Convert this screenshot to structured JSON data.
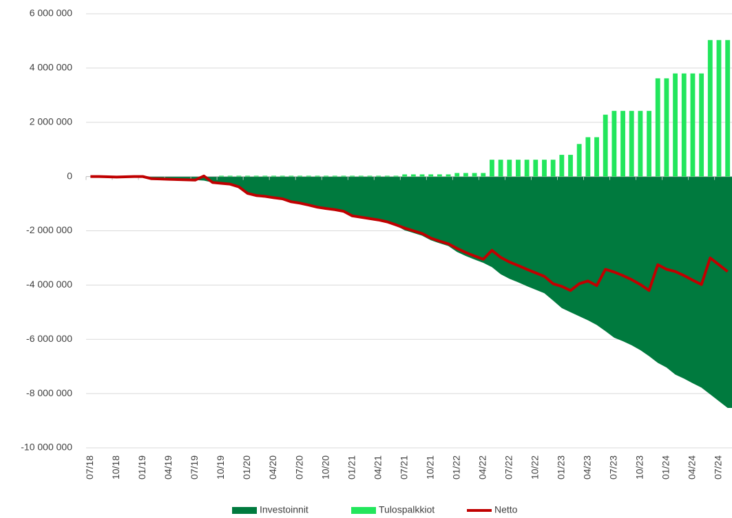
{
  "chart_data": {
    "type": "combo",
    "categories": [
      "07/18",
      null,
      null,
      "10/18",
      null,
      null,
      "01/19",
      null,
      null,
      "04/19",
      null,
      null,
      "07/19",
      null,
      null,
      "10/19",
      null,
      null,
      "01/20",
      null,
      null,
      "04/20",
      null,
      null,
      "07/20",
      null,
      null,
      "10/20",
      null,
      null,
      "01/21",
      null,
      null,
      "04/21",
      null,
      null,
      "07/21",
      null,
      null,
      "10/21",
      null,
      null,
      "01/22",
      null,
      null,
      "04/22",
      null,
      null,
      "07/22",
      null,
      null,
      "10/22",
      null,
      null,
      "01/23",
      null,
      null,
      "04/23",
      null,
      null,
      "07/23",
      null,
      null,
      "10/23",
      null,
      null,
      "01/24",
      null,
      null,
      "04/24",
      null,
      null,
      "07/24",
      null
    ],
    "series": [
      {
        "name": "Investoinnit",
        "kind": "area",
        "color": "#007a3e",
        "values": [
          0,
          0,
          -10000,
          -20000,
          -10000,
          0,
          0,
          -80000,
          -90000,
          -100000,
          -110000,
          -120000,
          -130000,
          -150000,
          -220000,
          -280000,
          -310000,
          -410000,
          -650000,
          -730000,
          -760000,
          -810000,
          -850000,
          -960000,
          -1010000,
          -1080000,
          -1160000,
          -1210000,
          -1250000,
          -1310000,
          -1480000,
          -1530000,
          -1580000,
          -1630000,
          -1700000,
          -1810000,
          -1980000,
          -2080000,
          -2180000,
          -2350000,
          -2460000,
          -2560000,
          -2780000,
          -2930000,
          -3060000,
          -3180000,
          -3340000,
          -3600000,
          -3770000,
          -3900000,
          -4040000,
          -4170000,
          -4300000,
          -4570000,
          -4850000,
          -5000000,
          -5150000,
          -5300000,
          -5470000,
          -5700000,
          -5940000,
          -6070000,
          -6220000,
          -6400000,
          -6620000,
          -6870000,
          -7040000,
          -7300000,
          -7450000,
          -7620000,
          -7780000,
          -8030000,
          -8280000,
          -8530000
        ]
      },
      {
        "name": "Tulospalkkiot",
        "kind": "bar",
        "color": "#22e65c",
        "values": [
          0,
          0,
          0,
          0,
          0,
          0,
          0,
          0,
          0,
          0,
          0,
          0,
          0,
          0,
          0,
          30000,
          30000,
          30000,
          30000,
          30000,
          30000,
          30000,
          30000,
          30000,
          30000,
          30000,
          30000,
          30000,
          30000,
          30000,
          30000,
          30000,
          30000,
          30000,
          30000,
          30000,
          80000,
          80000,
          80000,
          80000,
          80000,
          80000,
          130000,
          130000,
          130000,
          130000,
          620000,
          620000,
          620000,
          620000,
          620000,
          620000,
          620000,
          620000,
          800000,
          800000,
          1200000,
          1450000,
          1450000,
          2280000,
          2420000,
          2420000,
          2420000,
          2420000,
          2420000,
          3620000,
          3620000,
          3800000,
          3800000,
          3800000,
          3800000,
          5030000,
          5030000,
          5030000
        ]
      },
      {
        "name": "Netto",
        "kind": "line",
        "color": "#c00000",
        "values": [
          0,
          0,
          -10000,
          -20000,
          -10000,
          0,
          0,
          -80000,
          -90000,
          -100000,
          -110000,
          -120000,
          -130000,
          20000,
          -220000,
          -250000,
          -280000,
          -380000,
          -620000,
          -700000,
          -730000,
          -780000,
          -820000,
          -930000,
          -980000,
          -1050000,
          -1130000,
          -1180000,
          -1220000,
          -1280000,
          -1450000,
          -1500000,
          -1550000,
          -1600000,
          -1670000,
          -1780000,
          -1900000,
          -2000000,
          -2100000,
          -2270000,
          -2380000,
          -2480000,
          -2650000,
          -2800000,
          -2930000,
          -3050000,
          -2720000,
          -2980000,
          -3150000,
          -3280000,
          -3420000,
          -3550000,
          -3680000,
          -3950000,
          -4050000,
          -4200000,
          -3950000,
          -3850000,
          -4020000,
          -3420000,
          -3520000,
          -3650000,
          -3800000,
          -3980000,
          -4200000,
          -3250000,
          -3420000,
          -3500000,
          -3650000,
          -3820000,
          -3980000,
          -3000000,
          -3250000,
          -3500000
        ]
      }
    ],
    "ylim": [
      -10000000,
      6000000
    ],
    "yticks": [
      {
        "value": -10000000,
        "label": "-10 000 000"
      },
      {
        "value": -8000000,
        "label": "-8 000 000"
      },
      {
        "value": -6000000,
        "label": "-6 000 000"
      },
      {
        "value": -4000000,
        "label": "-4 000 000"
      },
      {
        "value": -2000000,
        "label": "-2 000 000"
      },
      0,
      {
        "value": 2000000,
        "label": "2 000 000"
      },
      {
        "value": 4000000,
        "label": "4 000 000"
      },
      {
        "value": 6000000,
        "label": "6 000 000"
      }
    ],
    "grid": true,
    "legend": "bottom"
  }
}
